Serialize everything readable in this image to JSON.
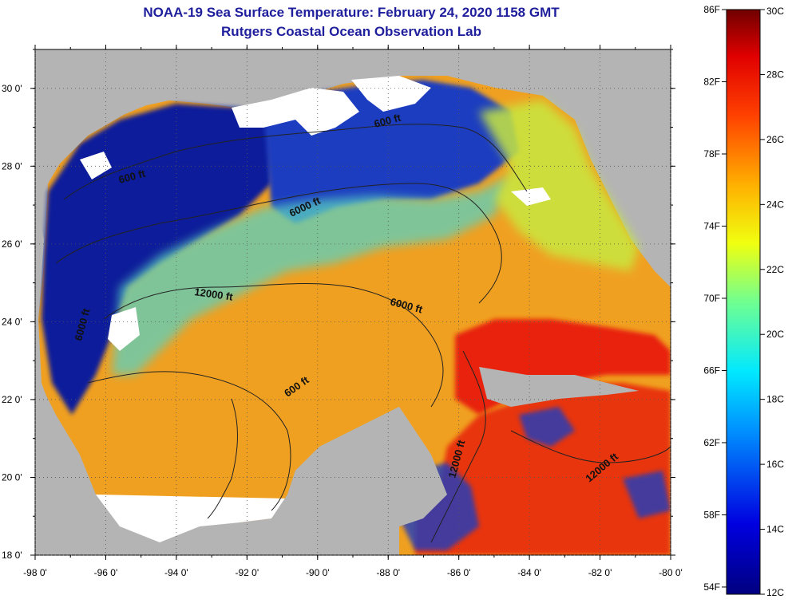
{
  "title": {
    "line1": "NOAA-19 Sea Surface Temperature:  February 24, 2020 1158 GMT",
    "line2": "Rutgers Coastal Ocean Observation Lab"
  },
  "axes": {
    "lat_ticks": [
      "30 0'",
      "28 0'",
      "26 0'",
      "24 0'",
      "22 0'",
      "20 0'",
      "18 0'"
    ],
    "lon_ticks": [
      "-98 0'",
      "-96 0'",
      "-94 0'",
      "-92 0'",
      "-90 0'",
      "-88 0'",
      "-86 0'",
      "-84 0'",
      "-82 0'",
      "-80 0'"
    ],
    "lat_range": [
      18,
      31
    ],
    "lon_range": [
      -98,
      -80
    ]
  },
  "contour_labels": [
    "600 ft",
    "600 ft",
    "6000 ft",
    "6000 ft",
    "12000 ft",
    "6000 ft",
    "600 ft",
    "12000 ft",
    "12000 ft"
  ],
  "colorbar": {
    "fahrenheit_labels": [
      "86F",
      "82F",
      "78F",
      "74F",
      "70F",
      "66F",
      "62F",
      "58F",
      "54F"
    ],
    "celsius_labels": [
      "30C",
      "28C",
      "26C",
      "24C",
      "22C",
      "20C",
      "18C",
      "16C",
      "14C",
      "12C"
    ],
    "range_c": [
      12,
      30
    ]
  },
  "colors": {
    "title": "#1f1f9e",
    "land": "#b4b4b4",
    "cloud": "#ffffff",
    "cold": "#0a1a9a",
    "warm": "#f0a020",
    "hot": "#e8240e"
  }
}
